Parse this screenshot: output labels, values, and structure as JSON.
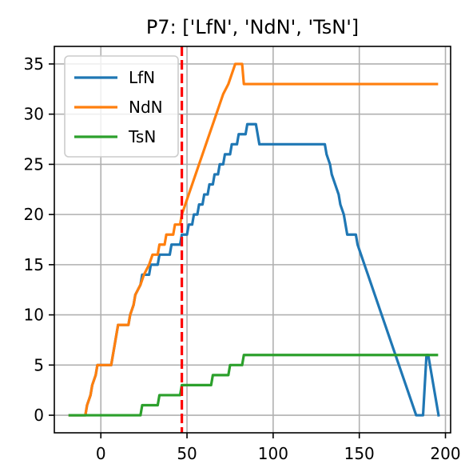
{
  "chart_data": {
    "type": "line",
    "title": "P7: ['LfN', 'NdN', 'TsN']",
    "xlabel": "",
    "ylabel": "",
    "xlim": [
      -27,
      203
    ],
    "ylim": [
      -1.75,
      36.75
    ],
    "x_ticks": [
      0,
      50,
      100,
      150,
      200
    ],
    "y_ticks": [
      0,
      5,
      10,
      15,
      20,
      25,
      30,
      35
    ],
    "grid": true,
    "legend_position": "upper-left",
    "vline": {
      "x": 47,
      "color": "#ff0000",
      "style": "dashed"
    },
    "series": [
      {
        "name": "LfN",
        "color": "#1f77b4",
        "points": [
          [
            -18,
            0
          ],
          [
            -9,
            0
          ],
          [
            -8,
            1
          ],
          [
            -6,
            2
          ],
          [
            -5,
            3
          ],
          [
            -3,
            4
          ],
          [
            -2,
            5
          ],
          [
            6,
            5
          ],
          [
            7,
            6
          ],
          [
            8,
            7
          ],
          [
            9,
            8
          ],
          [
            10,
            9
          ],
          [
            16,
            9
          ],
          [
            17,
            10
          ],
          [
            19,
            11
          ],
          [
            20,
            12
          ],
          [
            23,
            13
          ],
          [
            24,
            14
          ],
          [
            28,
            14
          ],
          [
            29,
            15
          ],
          [
            33,
            15
          ],
          [
            34,
            16
          ],
          [
            40,
            16
          ],
          [
            41,
            17
          ],
          [
            46,
            17
          ],
          [
            47,
            18
          ],
          [
            50,
            18
          ],
          [
            51,
            19
          ],
          [
            53,
            19
          ],
          [
            54,
            20
          ],
          [
            56,
            20
          ],
          [
            57,
            21
          ],
          [
            59,
            21
          ],
          [
            60,
            22
          ],
          [
            62,
            22
          ],
          [
            63,
            23
          ],
          [
            65,
            23
          ],
          [
            66,
            24
          ],
          [
            68,
            24
          ],
          [
            69,
            25
          ],
          [
            71,
            25
          ],
          [
            72,
            26
          ],
          [
            75,
            26
          ],
          [
            76,
            27
          ],
          [
            79,
            27
          ],
          [
            80,
            28
          ],
          [
            84,
            28
          ],
          [
            85,
            29
          ],
          [
            88,
            29
          ],
          [
            89,
            29
          ],
          [
            90,
            29
          ],
          [
            91,
            28
          ],
          [
            92,
            27
          ],
          [
            129,
            27
          ],
          [
            130,
            27
          ],
          [
            131,
            26
          ],
          [
            133,
            25
          ],
          [
            134,
            24
          ],
          [
            136,
            23
          ],
          [
            138,
            22
          ],
          [
            139,
            21
          ],
          [
            141,
            20
          ],
          [
            142,
            19
          ],
          [
            143,
            18
          ],
          [
            148,
            18
          ],
          [
            149,
            17
          ],
          [
            151,
            16
          ],
          [
            153,
            15
          ],
          [
            155,
            14
          ],
          [
            157,
            13
          ],
          [
            159,
            12
          ],
          [
            161,
            11
          ],
          [
            163,
            10
          ],
          [
            165,
            9
          ],
          [
            167,
            8
          ],
          [
            169,
            7
          ],
          [
            171,
            6
          ],
          [
            173,
            5
          ],
          [
            175,
            4
          ],
          [
            177,
            3
          ],
          [
            179,
            2
          ],
          [
            181,
            1
          ],
          [
            183,
            0
          ],
          [
            187,
            0
          ],
          [
            189,
            6
          ],
          [
            190,
            6
          ],
          [
            191,
            5
          ],
          [
            192,
            4
          ],
          [
            193,
            3
          ],
          [
            194,
            2
          ],
          [
            195,
            1
          ],
          [
            196,
            0
          ]
        ]
      },
      {
        "name": "NdN",
        "color": "#ff7f0e",
        "points": [
          [
            -18,
            0
          ],
          [
            -9,
            0
          ],
          [
            -8,
            1
          ],
          [
            -6,
            2
          ],
          [
            -5,
            3
          ],
          [
            -3,
            4
          ],
          [
            -2,
            5
          ],
          [
            6,
            5
          ],
          [
            7,
            6
          ],
          [
            8,
            7
          ],
          [
            9,
            8
          ],
          [
            10,
            9
          ],
          [
            16,
            9
          ],
          [
            17,
            10
          ],
          [
            19,
            11
          ],
          [
            20,
            12
          ],
          [
            23,
            13
          ],
          [
            25,
            14
          ],
          [
            28,
            15
          ],
          [
            30,
            16
          ],
          [
            33,
            16
          ],
          [
            34,
            17
          ],
          [
            37,
            17
          ],
          [
            38,
            18
          ],
          [
            42,
            18
          ],
          [
            43,
            19
          ],
          [
            46,
            19
          ],
          [
            47,
            20
          ],
          [
            49,
            21
          ],
          [
            51,
            22
          ],
          [
            53,
            23
          ],
          [
            55,
            24
          ],
          [
            57,
            25
          ],
          [
            59,
            26
          ],
          [
            61,
            27
          ],
          [
            63,
            28
          ],
          [
            65,
            29
          ],
          [
            67,
            30
          ],
          [
            69,
            31
          ],
          [
            71,
            32
          ],
          [
            74,
            33
          ],
          [
            76,
            34
          ],
          [
            78,
            35
          ],
          [
            79,
            35
          ],
          [
            82,
            35
          ],
          [
            83,
            33
          ],
          [
            195,
            33
          ]
        ]
      },
      {
        "name": "TsN",
        "color": "#2ca02c",
        "points": [
          [
            -18,
            0
          ],
          [
            23,
            0
          ],
          [
            24,
            1
          ],
          [
            33,
            1
          ],
          [
            34,
            2
          ],
          [
            46,
            2
          ],
          [
            47,
            3
          ],
          [
            64,
            3
          ],
          [
            65,
            4
          ],
          [
            74,
            4
          ],
          [
            75,
            5
          ],
          [
            82,
            5
          ],
          [
            83,
            6
          ],
          [
            195,
            6
          ]
        ]
      }
    ]
  }
}
